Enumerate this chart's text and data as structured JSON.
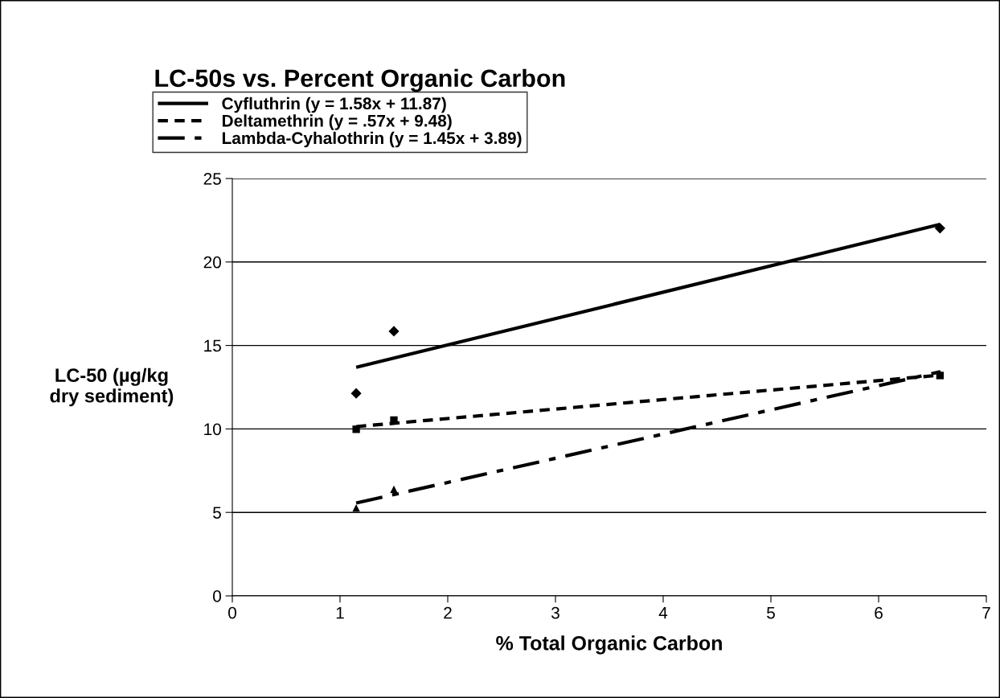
{
  "chart_data": {
    "type": "scatter",
    "title": "LC-50s vs. Percent Organic Carbon",
    "xlabel": "% Total Organic Carbon",
    "ylabel": "LC-50 (µg/kg\ndry sediment)",
    "xlim": [
      0,
      7
    ],
    "xticks": [
      0,
      1,
      2,
      3,
      4,
      5,
      6,
      7
    ],
    "ylim": [
      0,
      25
    ],
    "yticks": [
      0,
      5,
      10,
      15,
      20,
      25
    ],
    "grid": "y",
    "legend": "top",
    "series": [
      {
        "color": "#000000",
        "marker": "diamond",
        "x": [
          1.15,
          1.5,
          6.57
        ],
        "values": [
          12.13,
          15.85,
          22.02
        ]
      },
      {
        "color": "#000000",
        "marker": "square",
        "x": [
          1.15,
          1.5,
          6.57
        ],
        "values": [
          9.98,
          10.53,
          13.2
        ]
      },
      {
        "color": "#000000",
        "marker": "triangle",
        "x": [
          1.15,
          1.5,
          6.57
        ],
        "values": [
          5.27,
          6.39,
          13.3
        ]
      },
      {
        "type": "line",
        "name": "Cyfluthrin (y = 1.58x + 11.87)",
        "color": "#000000",
        "line_style": "solid",
        "x": [
          1.15,
          6.57
        ],
        "values": [
          13.69,
          22.25
        ]
      },
      {
        "type": "line",
        "name": "Deltamethrin (y = .57x + 9.48)",
        "color": "#000000",
        "line_style": "dashed",
        "x": [
          1.15,
          6.57
        ],
        "values": [
          10.14,
          13.22
        ]
      },
      {
        "type": "line",
        "name": "Lambda-Cyhalothrin (y = 1.45x + 3.89)",
        "color": "#000000",
        "line_style": "dashdot",
        "x": [
          1.15,
          6.57
        ],
        "values": [
          5.56,
          13.42
        ]
      }
    ]
  }
}
